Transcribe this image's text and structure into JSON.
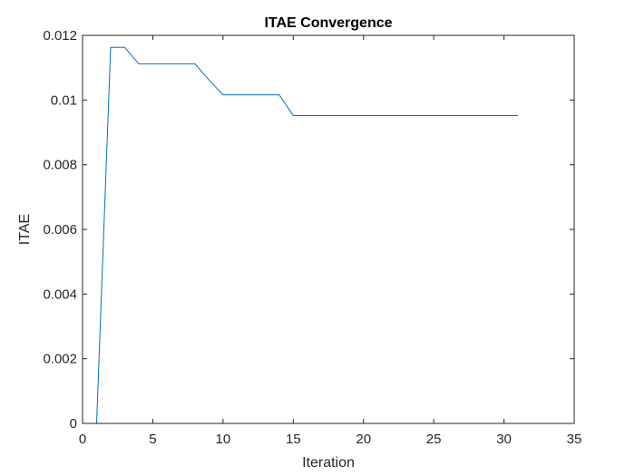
{
  "chart_data": {
    "type": "line",
    "title": "ITAE Convergence",
    "xlabel": "Iteration",
    "ylabel": "ITAE",
    "xlim": [
      0,
      35
    ],
    "ylim": [
      0,
      0.012
    ],
    "xticks": [
      0,
      5,
      10,
      15,
      20,
      25,
      30,
      35
    ],
    "xtick_labels": [
      "0",
      "5",
      "10",
      "15",
      "20",
      "25",
      "30",
      "35"
    ],
    "yticks": [
      0,
      0.002,
      0.004,
      0.006,
      0.008,
      0.01,
      0.012
    ],
    "ytick_labels": [
      "0",
      "0.002",
      "0.004",
      "0.006",
      "0.008",
      "0.01",
      "0.012"
    ],
    "grid": false,
    "box": true,
    "series": [
      {
        "color": "#0072BD",
        "x": [
          1,
          2,
          3,
          4,
          5,
          6,
          7,
          8,
          9,
          10,
          11,
          12,
          13,
          14,
          15,
          16,
          17,
          18,
          19,
          20,
          21,
          22,
          23,
          24,
          25,
          26,
          27,
          28,
          29,
          30,
          31
        ],
        "y": [
          0,
          0.01163,
          0.01163,
          0.01112,
          0.01112,
          0.01112,
          0.01112,
          0.01112,
          0.01062,
          0.01016,
          0.01016,
          0.01016,
          0.01016,
          0.01016,
          0.00952,
          0.00952,
          0.00952,
          0.00952,
          0.00952,
          0.00952,
          0.00952,
          0.00952,
          0.00952,
          0.00952,
          0.00952,
          0.00952,
          0.00952,
          0.00952,
          0.00952,
          0.00952,
          0.00952
        ]
      }
    ]
  }
}
